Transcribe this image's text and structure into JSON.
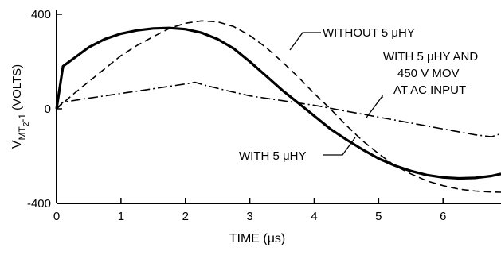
{
  "chart_data": {
    "type": "line",
    "title": "",
    "xlabel": "TIME (μs)",
    "ylabel": {
      "main": "V",
      "sub": "MT",
      "subsub": "2",
      "suffix": "-1",
      "unit": "(VOLTS)"
    },
    "xlim": [
      0,
      6.9
    ],
    "ylim": [
      -400,
      420
    ],
    "x_ticks": [
      0,
      1,
      2,
      3,
      4,
      5,
      6
    ],
    "y_ticks": [
      400,
      0,
      -400
    ],
    "grid": false,
    "legend": "none",
    "series": [
      {
        "label": "WITH 5 μHY",
        "style": "solid-thick",
        "color": "#000000",
        "points": [
          [
            0,
            0
          ],
          [
            0.1,
            180
          ],
          [
            0.3,
            220
          ],
          [
            0.5,
            260
          ],
          [
            0.75,
            295
          ],
          [
            1.0,
            318
          ],
          [
            1.25,
            332
          ],
          [
            1.5,
            340
          ],
          [
            1.75,
            342
          ],
          [
            2.0,
            337
          ],
          [
            2.25,
            322
          ],
          [
            2.5,
            295
          ],
          [
            2.75,
            255
          ],
          [
            3.0,
            200
          ],
          [
            3.25,
            140
          ],
          [
            3.5,
            80
          ],
          [
            3.75,
            25
          ],
          [
            4.0,
            -30
          ],
          [
            4.25,
            -85
          ],
          [
            4.5,
            -130
          ],
          [
            4.75,
            -172
          ],
          [
            5.0,
            -210
          ],
          [
            5.25,
            -240
          ],
          [
            5.5,
            -263
          ],
          [
            5.75,
            -280
          ],
          [
            6.0,
            -290
          ],
          [
            6.25,
            -294
          ],
          [
            6.5,
            -292
          ],
          [
            6.75,
            -284
          ],
          [
            6.9,
            -275
          ]
        ]
      },
      {
        "label": "WITHOUT 5 μHY",
        "style": "dashed",
        "color": "#000000",
        "points": [
          [
            0,
            0
          ],
          [
            0.25,
            60
          ],
          [
            0.5,
            115
          ],
          [
            0.75,
            170
          ],
          [
            1.0,
            225
          ],
          [
            1.25,
            268
          ],
          [
            1.5,
            305
          ],
          [
            1.75,
            340
          ],
          [
            2.0,
            362
          ],
          [
            2.25,
            372
          ],
          [
            2.5,
            368
          ],
          [
            2.75,
            348
          ],
          [
            3.0,
            310
          ],
          [
            3.25,
            260
          ],
          [
            3.5,
            200
          ],
          [
            3.75,
            135
          ],
          [
            4.0,
            65
          ],
          [
            4.25,
            0
          ],
          [
            4.5,
            -70
          ],
          [
            4.75,
            -135
          ],
          [
            5.0,
            -190
          ],
          [
            5.25,
            -240
          ],
          [
            5.5,
            -275
          ],
          [
            5.75,
            -305
          ],
          [
            6.0,
            -325
          ],
          [
            6.25,
            -340
          ],
          [
            6.5,
            -348
          ],
          [
            6.75,
            -352
          ],
          [
            6.9,
            -353
          ]
        ]
      },
      {
        "label": "WITH 5 μHY AND 450 V MOV AT AC INPUT",
        "style": "dash-dot",
        "color": "#000000",
        "points": [
          [
            0,
            0
          ],
          [
            0.1,
            28
          ],
          [
            0.5,
            45
          ],
          [
            1.0,
            65
          ],
          [
            1.5,
            85
          ],
          [
            2.0,
            105
          ],
          [
            2.15,
            112
          ],
          [
            2.3,
            100
          ],
          [
            2.6,
            80
          ],
          [
            3.0,
            55
          ],
          [
            3.5,
            35
          ],
          [
            4.0,
            15
          ],
          [
            4.5,
            -10
          ],
          [
            5.0,
            -35
          ],
          [
            5.5,
            -60
          ],
          [
            6.0,
            -85
          ],
          [
            6.5,
            -110
          ],
          [
            6.75,
            -118
          ],
          [
            6.9,
            -105
          ]
        ]
      }
    ],
    "annotations": [
      {
        "lines": [
          "WITHOUT 5 μHY"
        ],
        "series_index": 1
      },
      {
        "lines": [
          "WITH 5 μHY AND",
          "450 V MOV",
          "AT AC INPUT"
        ],
        "series_index": 2
      },
      {
        "lines": [
          "WITH 5 μHY"
        ],
        "series_index": 0
      }
    ]
  }
}
